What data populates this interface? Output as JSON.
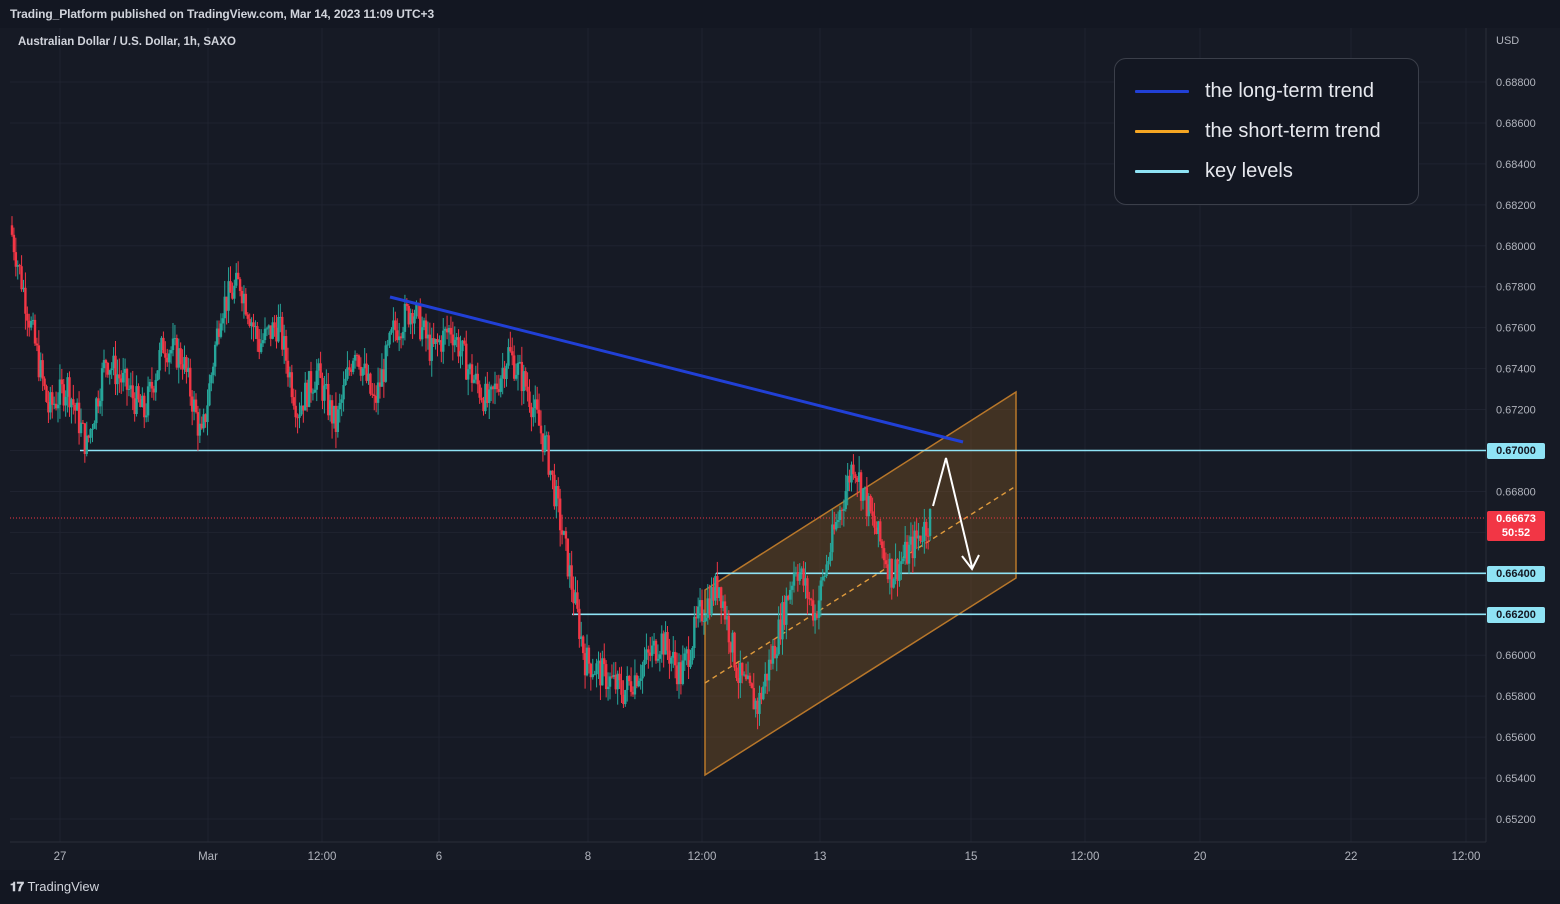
{
  "header": {
    "publisher_line": "Trading_Platform published on TradingView.com, Mar 14, 2023 11:09 UTC+3"
  },
  "footer": {
    "brand": "TradingView"
  },
  "chart_data": {
    "type": "candlestick",
    "title": "Australian Dollar / U.S. Dollar, 1h, SAXO",
    "currency_label": "USD",
    "ylim": [
      0.651,
      0.6898
    ],
    "y_ticks": [
      "0.68800",
      "0.68600",
      "0.68400",
      "0.68200",
      "0.68000",
      "0.67800",
      "0.67600",
      "0.67400",
      "0.67200",
      "0.67000",
      "0.66800",
      "0.66600",
      "0.66400",
      "0.66200",
      "0.66000",
      "0.65800",
      "0.65600",
      "0.65400",
      "0.65200"
    ],
    "x_ticks": [
      "27",
      "Mar",
      "12:00",
      "6",
      "8",
      "12:00",
      "13",
      "15",
      "12:00",
      "20",
      "22",
      "12:00"
    ],
    "current_price": {
      "value": "0.66673",
      "countdown": "50:52",
      "color": "#f23645"
    },
    "key_levels": [
      {
        "value": 0.67,
        "label": "0.67000"
      },
      {
        "value": 0.664,
        "label": "0.66400"
      },
      {
        "value": 0.662,
        "label": "0.66200"
      }
    ],
    "legend": [
      {
        "label": "the long-term trend",
        "color": "#2140d6"
      },
      {
        "label": "the short-term trend",
        "color": "#f5a623"
      },
      {
        "label": "key levels",
        "color": "#8fe3f5"
      }
    ],
    "colors": {
      "up": "#26a69a",
      "down": "#f23645",
      "long_trend": "#2140d6",
      "channel": "#b8772a",
      "key_level": "#8fe3f5",
      "arrow": "#ffffff"
    },
    "price_path": [
      [
        0.681,
        0.6765
      ],
      [
        0.6765,
        0.672
      ],
      [
        0.672,
        0.6732
      ],
      [
        0.6732,
        0.6702
      ],
      [
        0.6702,
        0.6745
      ],
      [
        0.6745,
        0.6732
      ],
      [
        0.6732,
        0.6718
      ],
      [
        0.6718,
        0.6752
      ],
      [
        0.6752,
        0.6745
      ],
      [
        0.6745,
        0.6705
      ],
      [
        0.6705,
        0.677
      ],
      [
        0.677,
        0.6782
      ],
      [
        0.6782,
        0.6752
      ],
      [
        0.6752,
        0.6762
      ],
      [
        0.6762,
        0.672
      ],
      [
        0.672,
        0.6738
      ],
      [
        0.6738,
        0.6712
      ],
      [
        0.6712,
        0.6752
      ],
      [
        0.6752,
        0.6722
      ],
      [
        0.6722,
        0.6758
      ],
      [
        0.6758,
        0.677
      ],
      [
        0.677,
        0.6748
      ],
      [
        0.6748,
        0.676
      ],
      [
        0.676,
        0.6738
      ],
      [
        0.6738,
        0.6722
      ],
      [
        0.6722,
        0.6748
      ],
      [
        0.6748,
        0.673
      ],
      [
        0.673,
        0.67
      ],
      [
        0.67,
        0.665
      ],
      [
        0.665,
        0.6598
      ],
      [
        0.6598,
        0.659
      ],
      [
        0.659,
        0.6582
      ],
      [
        0.6582,
        0.6595
      ],
      [
        0.6595,
        0.6608
      ],
      [
        0.6608,
        0.659
      ],
      [
        0.659,
        0.662
      ],
      [
        0.662,
        0.6635
      ],
      [
        0.6635,
        0.659
      ],
      [
        0.659,
        0.6575
      ],
      [
        0.6575,
        0.6608
      ],
      [
        0.6608,
        0.6645
      ],
      [
        0.6645,
        0.662
      ],
      [
        0.662,
        0.666
      ],
      [
        0.666,
        0.6695
      ],
      [
        0.6695,
        0.6665
      ],
      [
        0.6665,
        0.664
      ],
      [
        0.664,
        0.6652
      ],
      [
        0.6652,
        0.6667
      ]
    ],
    "drawings": {
      "long_term_trendline": {
        "from": [
          "Mar 5, 12:00",
          0.6775
        ],
        "to": [
          "Mar 14",
          0.6704
        ]
      },
      "short_term_channel": {
        "upper": [
          0.664,
          0.673
        ],
        "lower": [
          0.6545,
          0.664
        ],
        "mid_dashed": true
      },
      "projection_arrow": "up to 0.6700 then down to 0.6643"
    }
  }
}
